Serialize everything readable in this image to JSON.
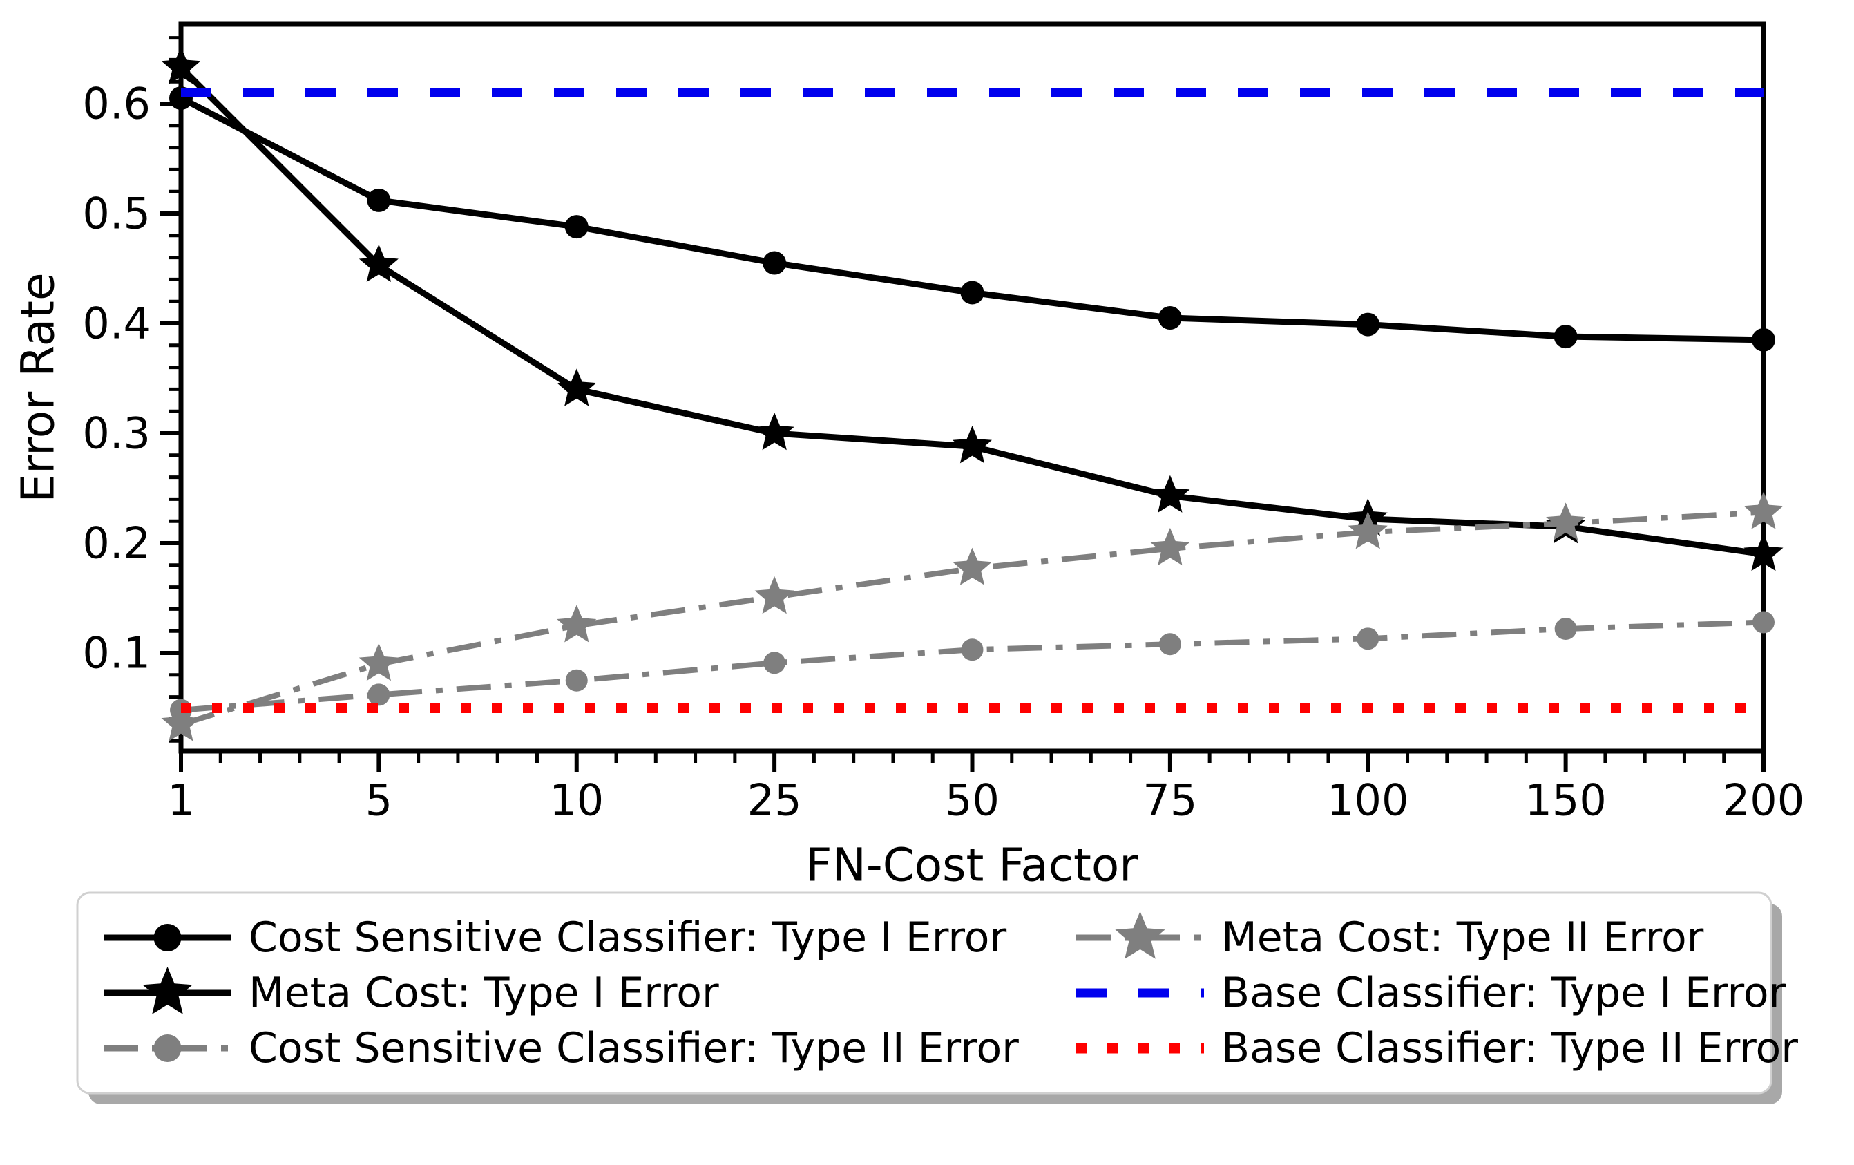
{
  "chart_data": {
    "type": "line",
    "title": "",
    "xlabel": "FN-Cost Factor",
    "ylabel": "Error Rate",
    "x_categories": [
      "1",
      "5",
      "10",
      "25",
      "50",
      "75",
      "100",
      "150",
      "200"
    ],
    "y_ticks": [
      0.1,
      0.2,
      0.3,
      0.4,
      0.5,
      0.6
    ],
    "y_tick_labels": [
      "0.1",
      "0.2",
      "0.3",
      "0.4",
      "0.5",
      "0.6"
    ],
    "y_minor_step": 0.02,
    "y_range": [
      0.011,
      0.672
    ],
    "grid": "off",
    "legend_position": "bottom",
    "series": [
      {
        "name": "Cost Sensitive Classifier: Type I Error",
        "style": "black-circle-solid",
        "values": [
          0.605,
          0.512,
          0.488,
          0.455,
          0.428,
          0.405,
          0.399,
          0.388,
          0.385
        ]
      },
      {
        "name": "Meta Cost: Type I Error",
        "style": "black-star-solid",
        "values": [
          0.633,
          0.453,
          0.34,
          0.3,
          0.288,
          0.243,
          0.222,
          0.215,
          0.19
        ]
      },
      {
        "name": "Cost Sensitive Classifier: Type II Error",
        "style": "gray-circle-dashdot",
        "values": [
          0.048,
          0.062,
          0.075,
          0.091,
          0.103,
          0.108,
          0.113,
          0.122,
          0.128
        ]
      },
      {
        "name": "Meta Cost: Type II Error",
        "style": "gray-star-dashdot",
        "values": [
          0.035,
          0.09,
          0.125,
          0.151,
          0.177,
          0.195,
          0.21,
          0.218,
          0.228
        ]
      },
      {
        "name": "Base Classifier: Type I Error",
        "style": "blue-dashed",
        "constant": 0.61
      },
      {
        "name": "Base Classifier: Type II Error",
        "style": "red-dotted",
        "constant": 0.05
      }
    ],
    "legend_columns": [
      [
        "Cost Sensitive Classifier: Type I Error",
        "Meta Cost: Type I Error",
        "Cost Sensitive Classifier: Type II Error"
      ],
      [
        "Meta Cost: Type II Error",
        "Base Classifier: Type I Error",
        "Base Classifier: Type II Error"
      ]
    ],
    "colors": {
      "black": "#000000",
      "gray": "#7f7f7f",
      "blue": "#0000ee",
      "red": "#ff0000",
      "legend_border": "#d0d0d0",
      "legend_shadow": "#a8a8a8"
    }
  }
}
